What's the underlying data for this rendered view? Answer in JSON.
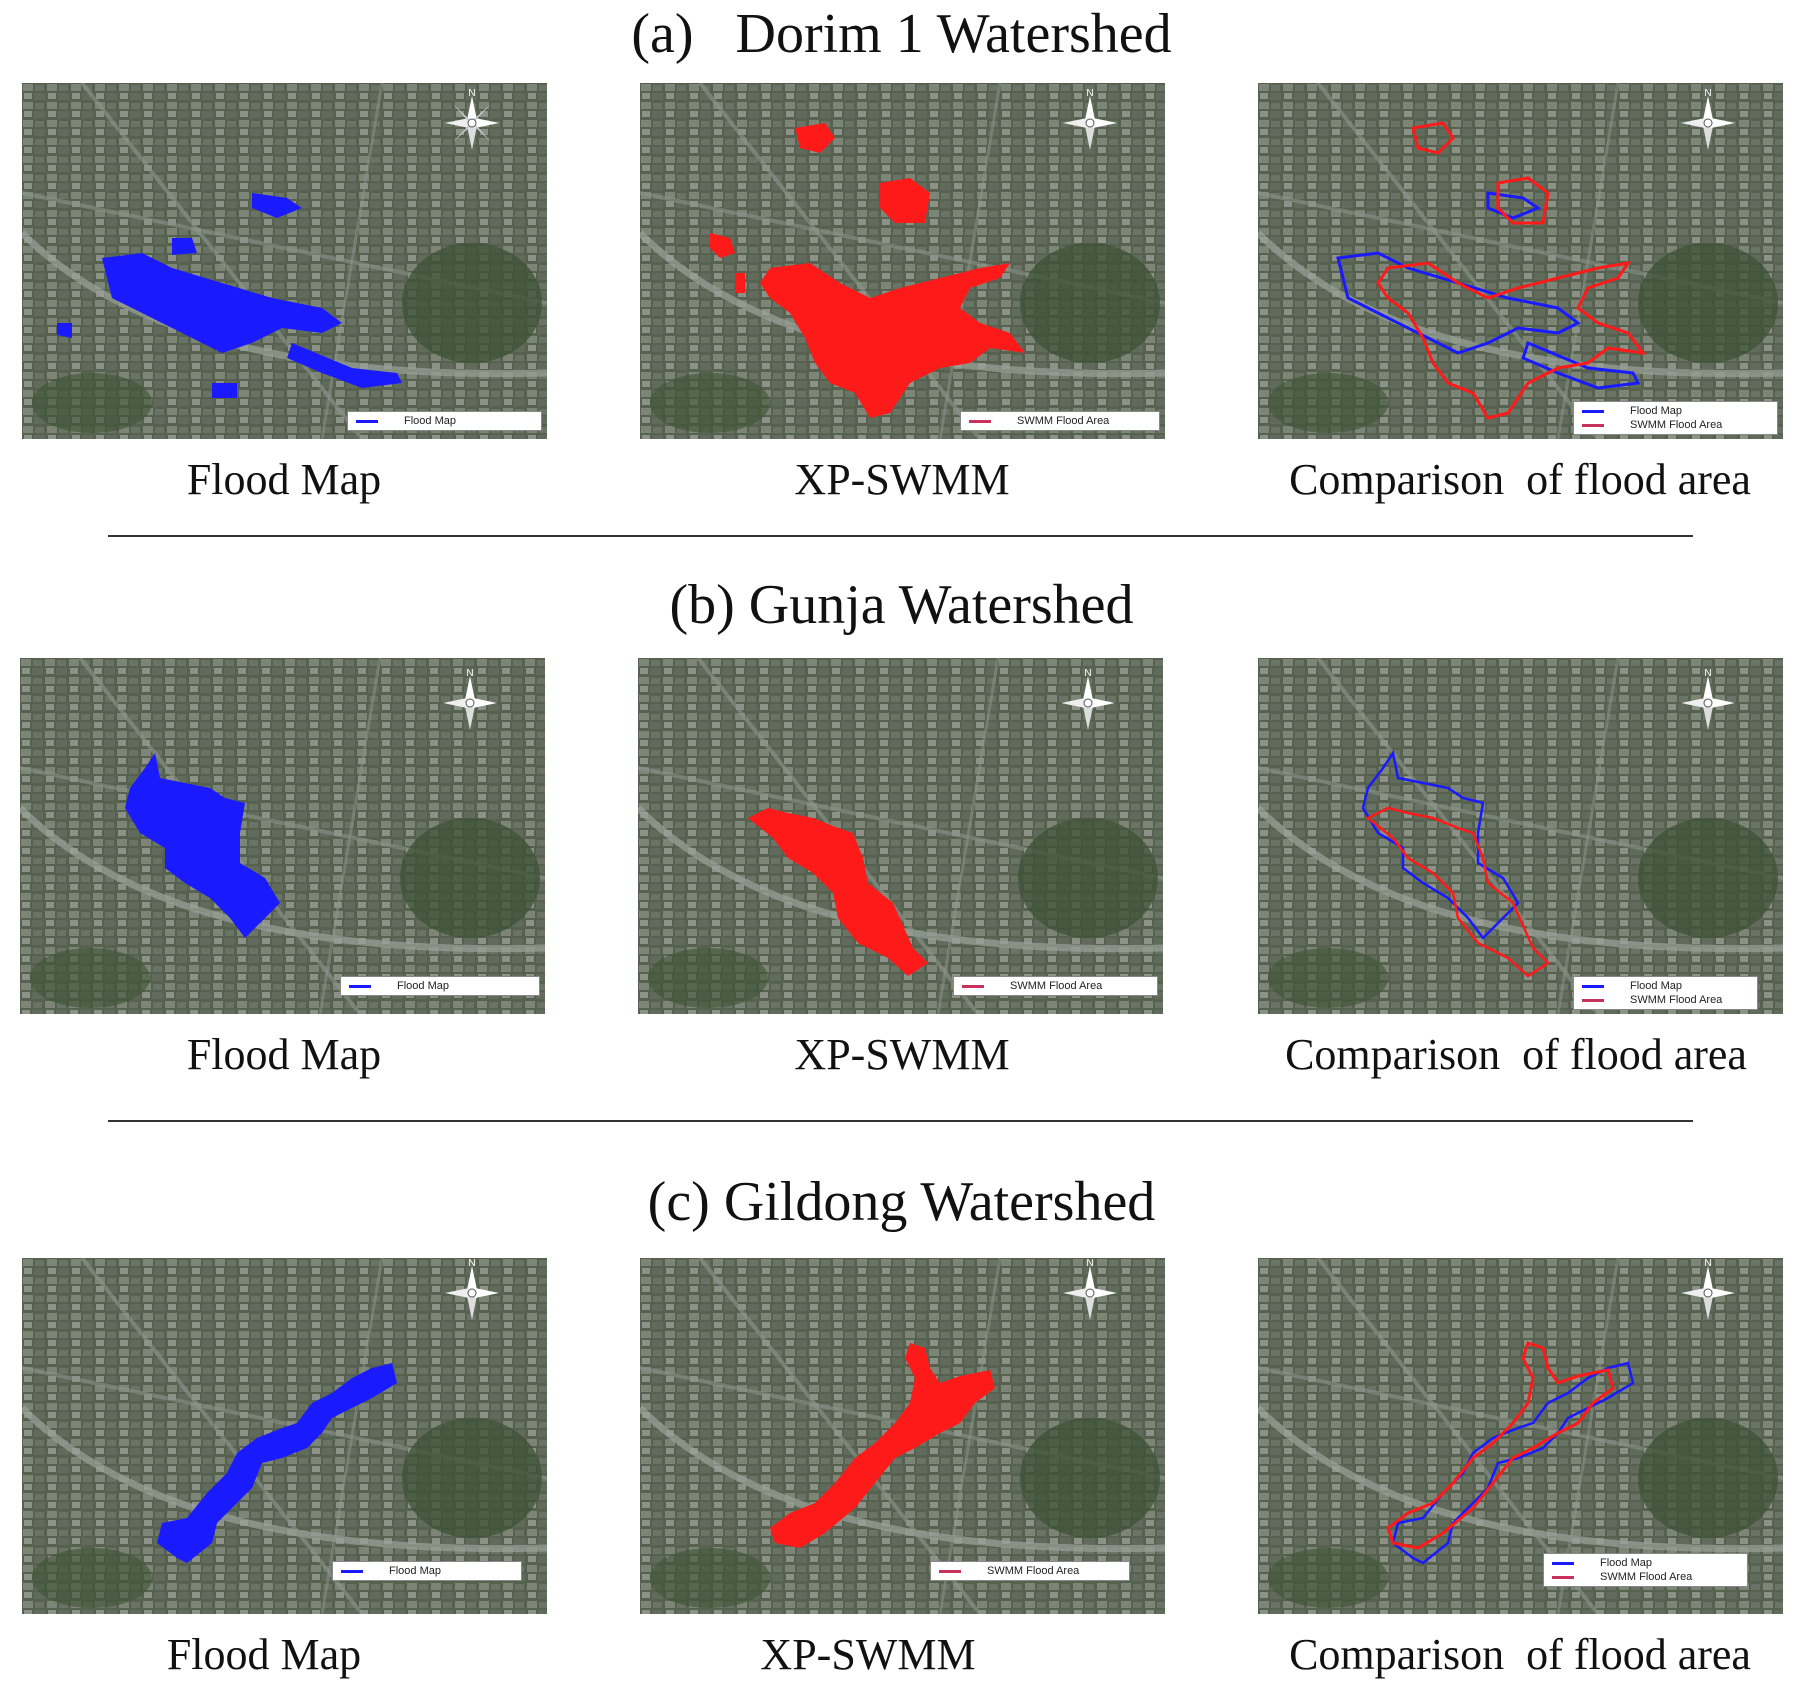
{
  "colors": {
    "flood_map": "#1a1aff",
    "swmm": "#ff1a1a",
    "legend_swmm_line": "#c8325a"
  },
  "icons": {
    "compass": "north-arrow-compass-icon"
  },
  "sections": [
    {
      "title": "(a)   Dorim 1 Watershed",
      "panels": [
        {
          "caption": "Flood Map",
          "legend": [
            "Flood Map"
          ],
          "compass_label": "N"
        },
        {
          "caption": "XP-SWMM",
          "legend": [
            "SWMM Flood Area"
          ],
          "compass_label": "N"
        },
        {
          "caption": "Comparison  of flood area",
          "legend": [
            "Flood Map",
            "SWMM Flood Area"
          ],
          "compass_label": "N"
        }
      ]
    },
    {
      "title": "(b) Gunja Watershed",
      "panels": [
        {
          "caption": "Flood Map",
          "legend": [
            "Flood Map"
          ],
          "compass_label": "N"
        },
        {
          "caption": "XP-SWMM",
          "legend": [
            "SWMM Flood Area"
          ],
          "compass_label": "N"
        },
        {
          "caption": "Comparison  of flood area",
          "legend": [
            "Flood Map",
            "SWMM Flood Area"
          ],
          "compass_label": "N"
        }
      ]
    },
    {
      "title": "(c) Gildong Watershed",
      "panels": [
        {
          "caption": "Flood Map",
          "legend": [
            "Flood Map"
          ],
          "compass_label": "N"
        },
        {
          "caption": "XP-SWMM",
          "legend": [
            "SWMM Flood Area"
          ],
          "compass_label": "N"
        },
        {
          "caption": "Comparison  of flood area",
          "legend": [
            "Flood Map",
            "SWMM Flood Area"
          ],
          "compass_label": "N"
        }
      ]
    }
  ]
}
